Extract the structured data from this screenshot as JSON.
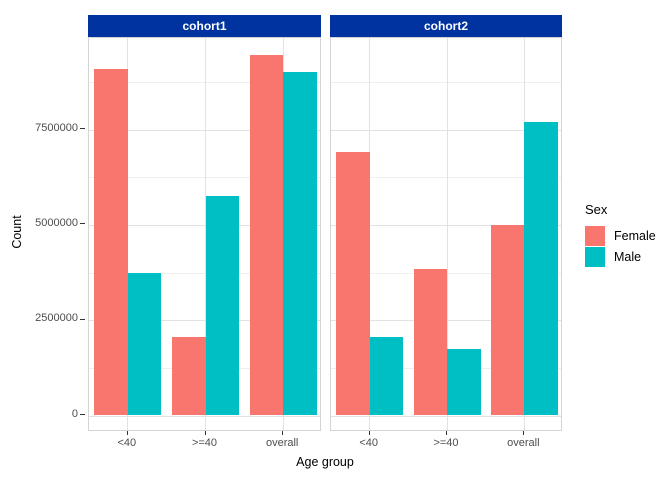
{
  "chart_data": {
    "type": "bar",
    "title": "",
    "xlabel": "Age group",
    "ylabel": "Count",
    "ylim": [
      0,
      9900000
    ],
    "yticks": [
      0,
      2500000,
      5000000,
      7500000
    ],
    "ytick_labels": [
      "0",
      "2500000",
      "5000000",
      "7500000"
    ],
    "minor_yticks": [
      1250000,
      3750000,
      6250000,
      8750000
    ],
    "categories": [
      "<40",
      ">=40",
      "overall"
    ],
    "grid": true,
    "legend_position": "right",
    "facets": [
      {
        "label": "cohort1",
        "series": [
          {
            "name": "Female",
            "values": [
              9100000,
              2050000,
              9450000
            ]
          },
          {
            "name": "Male",
            "values": [
              3750000,
              5750000,
              9000000
            ]
          }
        ]
      },
      {
        "label": "cohort2",
        "series": [
          {
            "name": "Female",
            "values": [
              6900000,
              3850000,
              5000000
            ]
          },
          {
            "name": "Male",
            "values": [
              2050000,
              1750000,
              7700000
            ]
          }
        ]
      }
    ]
  },
  "legend": {
    "title": "Sex",
    "items": [
      {
        "label": "Female",
        "color": "#F8766D"
      },
      {
        "label": "Male",
        "color": "#00BFC4"
      }
    ]
  },
  "colors": {
    "strip_bg": "#0033A0",
    "strip_text": "#FFFFFF",
    "female": "#F8766D",
    "male": "#00BFC4",
    "grid_major": "#E2E2E2",
    "grid_minor": "#EFEFEF",
    "panel_border": "#D4D4D4",
    "axis_text": "#4D4D4D",
    "tick_mark": "#333333"
  }
}
